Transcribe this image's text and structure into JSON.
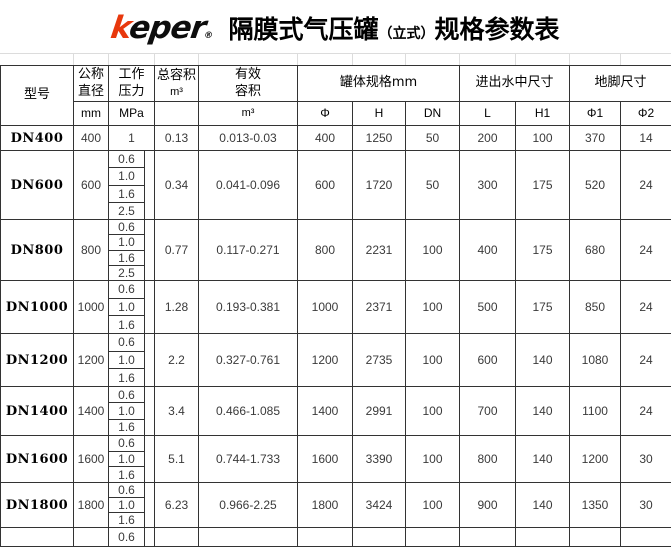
{
  "header": {
    "logo_accent": "k",
    "logo_rest": "eper",
    "logo_reg": "®",
    "title_main": "隔膜式气压罐",
    "title_paren": "（立式）",
    "title_tail": "规格参数表"
  },
  "table": {
    "columns": {
      "model": "型号",
      "diameter_l1": "公称",
      "diameter_l2": "直径",
      "diameter_unit": "mm",
      "pressure_l1": "工作",
      "pressure_l2": "压力",
      "pressure_unit": "MPa",
      "total_volume": "总容积",
      "total_volume_unit": "m³",
      "effective_l1": "有效",
      "effective_l2": "容积",
      "effective_unit": "m³",
      "tank_group": "罐体规格mm",
      "tank_phi": "Φ",
      "tank_h": "H",
      "tank_dn": "DN",
      "inlet_group": "进出水中尺寸",
      "inlet_l": "L",
      "inlet_h1": "H1",
      "foot_group": "地脚尺寸",
      "foot_phi1": "Φ1",
      "foot_phi2": "Φ2"
    },
    "rows": [
      {
        "model": "DN400",
        "diameter": "400",
        "pressures": [
          "1"
        ],
        "total_volume": "0.13",
        "effective_volume": "0.013-0.03",
        "phi": "400",
        "h": "1250",
        "dn": "50",
        "l": "200",
        "h1": "100",
        "phi1": "370",
        "phi2": "14"
      },
      {
        "model": "DN600",
        "diameter": "600",
        "pressures": [
          "0.6",
          "1.0",
          "1.6",
          "2.5"
        ],
        "total_volume": "0.34",
        "effective_volume": "0.041-0.096",
        "phi": "600",
        "h": "1720",
        "dn": "50",
        "l": "300",
        "h1": "175",
        "phi1": "520",
        "phi2": "24"
      },
      {
        "model": "DN800",
        "diameter": "800",
        "pressures": [
          "0.6",
          "1.0",
          "1.6",
          "2.5"
        ],
        "total_volume": "0.77",
        "effective_volume": "0.117-0.271",
        "phi": "800",
        "h": "2231",
        "dn": "100",
        "l": "400",
        "h1": "175",
        "phi1": "680",
        "phi2": "24"
      },
      {
        "model": "DN1000",
        "diameter": "1000",
        "pressures": [
          "0.6",
          "1.0",
          "1.6"
        ],
        "total_volume": "1.28",
        "effective_volume": "0.193-0.381",
        "phi": "1000",
        "h": "2371",
        "dn": "100",
        "l": "500",
        "h1": "175",
        "phi1": "850",
        "phi2": "24"
      },
      {
        "model": "DN1200",
        "diameter": "1200",
        "pressures": [
          "0.6",
          "1.0",
          "1.6"
        ],
        "total_volume": "2.2",
        "effective_volume": "0.327-0.761",
        "phi": "1200",
        "h": "2735",
        "dn": "100",
        "l": "600",
        "h1": "140",
        "phi1": "1080",
        "phi2": "24"
      },
      {
        "model": "DN1400",
        "diameter": "1400",
        "pressures": [
          "0.6",
          "1.0",
          "1.6"
        ],
        "total_volume": "3.4",
        "effective_volume": "0.466-1.085",
        "phi": "1400",
        "h": "2991",
        "dn": "100",
        "l": "700",
        "h1": "140",
        "phi1": "1100",
        "phi2": "24"
      },
      {
        "model": "DN1600",
        "diameter": "1600",
        "pressures": [
          "0.6",
          "1.0",
          "1.6"
        ],
        "total_volume": "5.1",
        "effective_volume": "0.744-1.733",
        "phi": "1600",
        "h": "3390",
        "dn": "100",
        "l": "800",
        "h1": "140",
        "phi1": "1200",
        "phi2": "30"
      },
      {
        "model": "DN1800",
        "diameter": "1800",
        "pressures": [
          "0.6",
          "1.0",
          "1.6"
        ],
        "total_volume": "6.23",
        "effective_volume": "0.966-2.25",
        "phi": "1800",
        "h": "3424",
        "dn": "100",
        "l": "900",
        "h1": "140",
        "phi1": "1350",
        "phi2": "30"
      },
      {
        "model": "",
        "diameter": "",
        "pressures": [
          "0.6"
        ],
        "total_volume": "",
        "effective_volume": "",
        "phi": "",
        "h": "",
        "dn": "",
        "l": "",
        "h1": "",
        "phi1": "",
        "phi2": ""
      }
    ]
  },
  "colors": {
    "logo_red": "#e8380d",
    "table_border": "#333333",
    "faint_gridline": "#dcdcdc",
    "number_text": "#3a3a3a"
  }
}
